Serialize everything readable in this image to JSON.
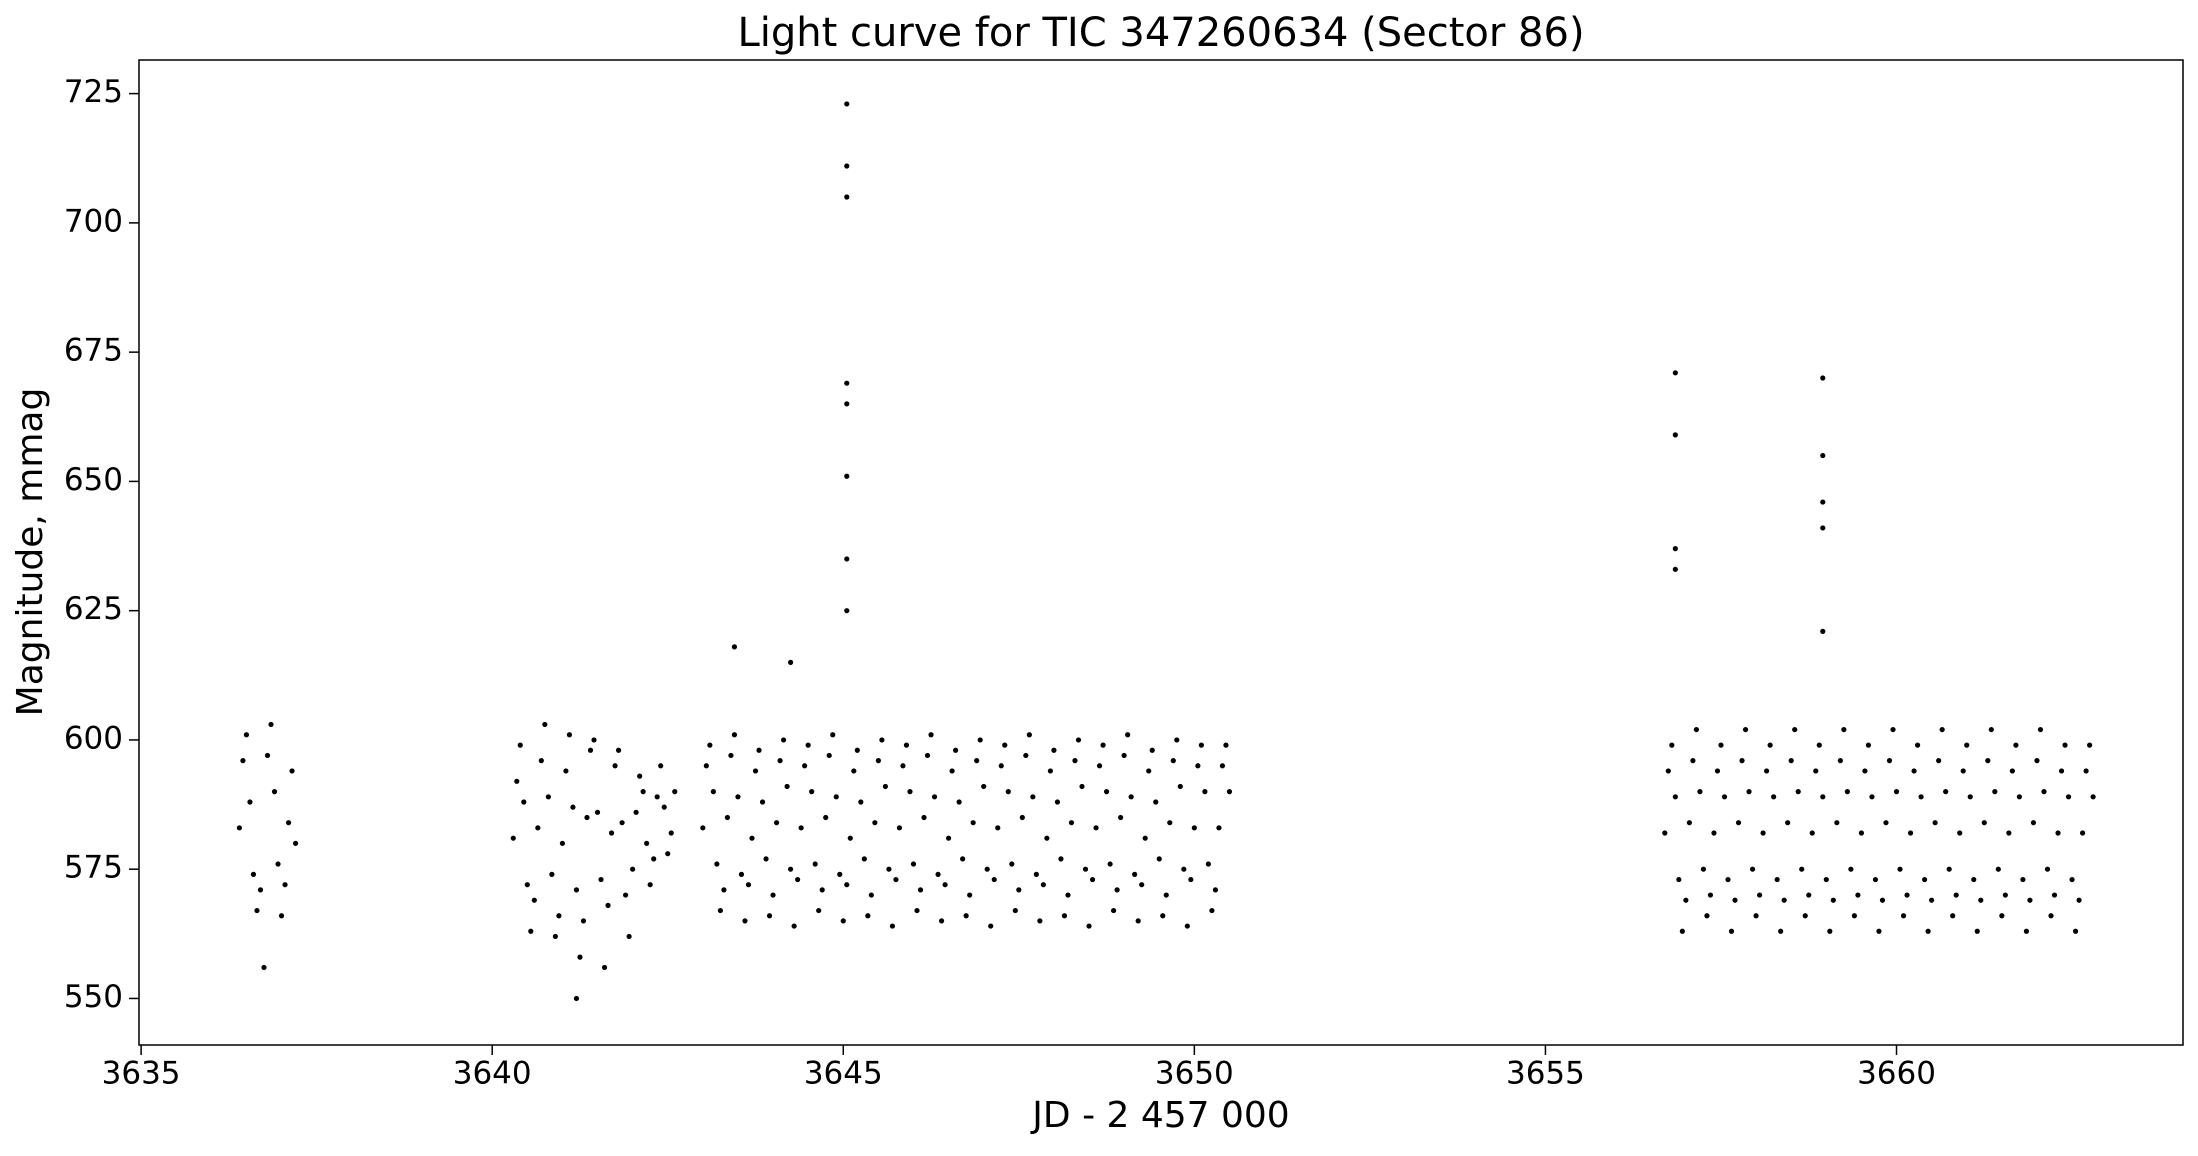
{
  "chart_data": {
    "type": "scatter",
    "title": "Light curve for TIC 347260634 (Sector 86)",
    "x_label": "JD - 2 457 000",
    "y_label": "Magnitude, mmag",
    "color": "#000000",
    "xlim": [
      3634.97,
      3664.08
    ],
    "ylim": [
      541.0,
      731.5
    ],
    "xticks": [
      3635,
      3640,
      3645,
      3650,
      3655,
      3660
    ],
    "yticks": [
      550,
      575,
      600,
      625,
      650,
      675,
      700,
      725
    ],
    "x": [
      3636.4,
      3636.45,
      3636.5,
      3636.55,
      3636.6,
      3636.65,
      3636.7,
      3636.75,
      3636.8,
      3636.85,
      3636.9,
      3636.95,
      3637,
      3637.05,
      3637.1,
      3637.15,
      3637.2,
      3640.3,
      3640.35,
      3640.4,
      3640.45,
      3640.5,
      3640.55,
      3640.6,
      3640.65,
      3640.7,
      3640.75,
      3640.8,
      3640.85,
      3640.9,
      3640.95,
      3641,
      3641.05,
      3641.1,
      3641.15,
      3641.2,
      3641.25,
      3641.3,
      3641.35,
      3641.4,
      3641.45,
      3641.5,
      3641.55,
      3641.6,
      3641.65,
      3641.7,
      3641.75,
      3641.8,
      3641.85,
      3641.9,
      3641.95,
      3642,
      3642.05,
      3642.1,
      3642.15,
      3642.2,
      3642.25,
      3642.3,
      3642.35,
      3642.4,
      3642.45,
      3642.5,
      3642.55,
      3642.6,
      3643,
      3643.05,
      3643.1,
      3643.15,
      3643.2,
      3643.25,
      3643.3,
      3643.35,
      3643.4,
      3643.45,
      3643.5,
      3643.55,
      3643.6,
      3643.65,
      3643.7,
      3643.75,
      3643.8,
      3643.85,
      3643.9,
      3643.95,
      3644,
      3644.05,
      3644.1,
      3644.15,
      3644.2,
      3644.25,
      3644.3,
      3644.35,
      3644.4,
      3644.45,
      3644.5,
      3644.55,
      3644.6,
      3644.65,
      3644.7,
      3644.75,
      3644.8,
      3644.85,
      3644.9,
      3644.95,
      3645,
      3645.05,
      3645.1,
      3645.15,
      3645.2,
      3645.25,
      3645.3,
      3645.35,
      3645.4,
      3645.45,
      3645.5,
      3645.55,
      3645.6,
      3645.65,
      3645.7,
      3645.75,
      3645.8,
      3645.85,
      3645.9,
      3645.95,
      3646,
      3646.05,
      3646.1,
      3646.15,
      3646.2,
      3646.25,
      3646.3,
      3646.35,
      3646.4,
      3646.45,
      3646.5,
      3646.55,
      3646.6,
      3646.65,
      3646.7,
      3646.75,
      3646.8,
      3646.85,
      3646.9,
      3646.95,
      3647,
      3647.05,
      3647.1,
      3647.15,
      3647.2,
      3647.25,
      3647.3,
      3647.35,
      3647.4,
      3647.45,
      3647.5,
      3647.55,
      3647.6,
      3647.65,
      3647.7,
      3647.75,
      3647.8,
      3647.85,
      3647.9,
      3647.95,
      3648,
      3648.05,
      3648.1,
      3648.15,
      3648.2,
      3648.25,
      3648.3,
      3648.35,
      3648.4,
      3648.45,
      3648.5,
      3648.55,
      3648.6,
      3648.65,
      3648.7,
      3648.75,
      3648.8,
      3648.85,
      3648.9,
      3648.95,
      3649,
      3649.05,
      3649.1,
      3649.15,
      3649.2,
      3649.25,
      3649.3,
      3649.35,
      3649.4,
      3649.45,
      3649.5,
      3649.55,
      3649.6,
      3649.65,
      3649.7,
      3649.75,
      3649.8,
      3649.85,
      3649.9,
      3649.95,
      3650,
      3650.05,
      3650.1,
      3650.15,
      3650.2,
      3650.25,
      3650.3,
      3650.35,
      3650.4,
      3650.45,
      3650.5,
      3656.7,
      3656.75,
      3656.8,
      3656.85,
      3656.9,
      3656.95,
      3657,
      3657.05,
      3657.1,
      3657.15,
      3657.2,
      3657.25,
      3657.3,
      3657.35,
      3657.4,
      3657.45,
      3657.5,
      3657.55,
      3657.6,
      3657.65,
      3657.7,
      3657.75,
      3657.8,
      3657.85,
      3657.9,
      3657.95,
      3658,
      3658.05,
      3658.1,
      3658.15,
      3658.2,
      3658.25,
      3658.3,
      3658.35,
      3658.4,
      3658.45,
      3658.5,
      3658.55,
      3658.6,
      3658.65,
      3658.7,
      3658.75,
      3658.8,
      3658.85,
      3658.9,
      3658.95,
      3659,
      3659.05,
      3659.1,
      3659.15,
      3659.2,
      3659.25,
      3659.3,
      3659.35,
      3659.4,
      3659.45,
      3659.5,
      3659.55,
      3659.6,
      3659.65,
      3659.7,
      3659.75,
      3659.8,
      3659.85,
      3659.9,
      3659.95,
      3660,
      3660.05,
      3660.1,
      3660.15,
      3660.2,
      3660.25,
      3660.3,
      3660.35,
      3660.4,
      3660.45,
      3660.5,
      3660.55,
      3660.6,
      3660.65,
      3660.7,
      3660.75,
      3660.8,
      3660.85,
      3660.9,
      3660.95,
      3661,
      3661.05,
      3661.1,
      3661.15,
      3661.2,
      3661.25,
      3661.3,
      3661.35,
      3661.4,
      3661.45,
      3661.5,
      3661.55,
      3661.6,
      3661.65,
      3661.7,
      3661.75,
      3661.8,
      3661.85,
      3661.9,
      3661.95,
      3662,
      3662.05,
      3662.1,
      3662.15,
      3662.2,
      3662.25,
      3662.3,
      3662.35,
      3662.4,
      3662.45,
      3662.5,
      3662.55,
      3662.6,
      3662.65,
      3662.7,
      3662.75,
      3662.8,
      3645.05,
      3645.05,
      3645.05,
      3645.05,
      3645.05,
      3645.05,
      3645.05,
      3645.05,
      3643.45,
      3644.25,
      3656.85,
      3656.85,
      3656.85,
      3656.85,
      3658.95,
      3658.95,
      3658.95,
      3658.95,
      3658.95,
      3641.2
    ],
    "values": [
      583,
      596,
      601,
      588,
      574,
      567,
      571,
      556,
      597,
      603,
      590,
      576,
      566,
      572,
      584,
      594,
      580,
      581,
      592,
      599,
      588,
      572,
      563,
      569,
      583,
      596,
      603,
      589,
      574,
      562,
      566,
      580,
      594,
      601,
      587,
      571,
      558,
      565,
      585,
      598,
      600,
      586,
      573,
      556,
      568,
      582,
      595,
      598,
      584,
      570,
      562,
      575,
      586,
      593,
      590,
      580,
      572,
      577,
      589,
      595,
      587,
      578,
      582,
      590,
      583,
      595,
      599,
      590,
      576,
      567,
      571,
      585,
      597,
      601,
      589,
      574,
      565,
      572,
      581,
      594,
      598,
      588,
      577,
      566,
      570,
      584,
      596,
      600,
      591,
      575,
      564,
      573,
      583,
      595,
      599,
      590,
      576,
      567,
      571,
      585,
      597,
      601,
      589,
      574,
      565,
      572,
      581,
      594,
      598,
      588,
      577,
      566,
      570,
      584,
      596,
      600,
      591,
      575,
      564,
      573,
      583,
      595,
      599,
      590,
      576,
      567,
      571,
      585,
      597,
      601,
      589,
      574,
      565,
      572,
      581,
      594,
      598,
      588,
      577,
      566,
      570,
      584,
      596,
      600,
      591,
      575,
      564,
      573,
      583,
      595,
      599,
      590,
      576,
      567,
      571,
      585,
      597,
      601,
      589,
      574,
      565,
      572,
      581,
      594,
      598,
      588,
      577,
      566,
      570,
      584,
      596,
      600,
      591,
      575,
      564,
      573,
      583,
      595,
      599,
      590,
      576,
      567,
      571,
      585,
      597,
      601,
      589,
      574,
      565,
      572,
      581,
      594,
      598,
      588,
      577,
      566,
      570,
      584,
      596,
      600,
      591,
      575,
      564,
      573,
      583,
      595,
      599,
      590,
      576,
      567,
      571,
      583,
      595,
      599,
      590,
      582,
      594,
      599,
      589,
      573,
      563,
      569,
      584,
      596,
      602,
      590,
      575,
      566,
      570,
      582,
      594,
      599,
      589,
      573,
      563,
      569,
      584,
      596,
      602,
      590,
      575,
      566,
      570,
      582,
      594,
      599,
      589,
      573,
      563,
      569,
      584,
      596,
      602,
      590,
      575,
      566,
      570,
      582,
      594,
      599,
      589,
      573,
      563,
      569,
      584,
      596,
      602,
      590,
      575,
      566,
      570,
      582,
      594,
      599,
      589,
      573,
      563,
      569,
      584,
      596,
      602,
      590,
      575,
      566,
      570,
      582,
      594,
      599,
      589,
      573,
      563,
      569,
      584,
      596,
      602,
      590,
      575,
      566,
      570,
      582,
      594,
      599,
      589,
      573,
      563,
      569,
      584,
      596,
      602,
      590,
      575,
      566,
      570,
      582,
      594,
      599,
      589,
      573,
      563,
      569,
      584,
      596,
      602,
      590,
      575,
      566,
      570,
      582,
      594,
      599,
      589,
      573,
      563,
      569,
      582,
      594,
      599,
      589,
      723,
      711,
      705,
      669,
      665,
      651,
      635,
      625,
      618,
      615,
      671,
      659,
      637,
      633,
      670,
      655,
      646,
      641,
      621,
      550
    ]
  }
}
